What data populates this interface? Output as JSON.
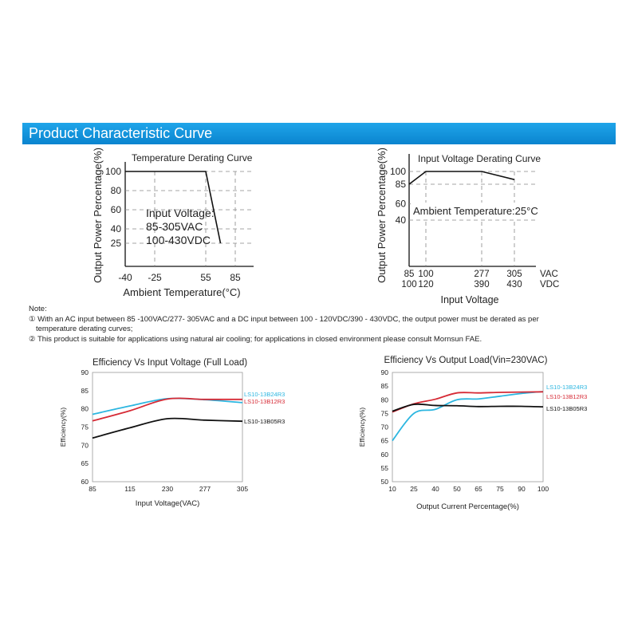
{
  "section_title": "Product Characteristic Curve",
  "notes": {
    "heading": "Note:",
    "items": [
      "① With an AC input between 85 -100VAC/277- 305VAC and a DC input between 100 - 120VDC/390 - 430VDC, the output power must be derated as per",
      "temperature derating curves;",
      "② This product is suitable for applications using natural air cooling; for applications in closed environment please consult Mornsun FAE."
    ]
  },
  "colors": {
    "banner": "#1097dc",
    "cyan": "#2cb6e0",
    "red": "#d62a35",
    "black": "#111111",
    "grid": "#888888"
  },
  "chart_data": [
    {
      "type": "line",
      "title": "Temperature Derating Curve",
      "xlabel": "Ambient Temperature(°C)",
      "ylabel": "Output Power Percentage(%)",
      "x_ticks": [
        "-40",
        "-25",
        "55",
        "85"
      ],
      "y_ticks": [
        "100",
        "80",
        "60",
        "40",
        "25"
      ],
      "series": [
        {
          "x": [
            -40,
            55,
            70
          ],
          "y": [
            100,
            100,
            25
          ]
        }
      ],
      "annotation": [
        "Input Voltage:",
        "85-305VAC",
        "100-430VDC"
      ],
      "grid": "dashed"
    },
    {
      "type": "line",
      "title": "Input Voltage Derating Curve",
      "xlabel": "Input Voltage",
      "ylabel": "Output Power Percentage(%)",
      "x_ticks_vac": [
        "85",
        "100",
        "277",
        "305"
      ],
      "x_ticks_vdc": [
        "100",
        "120",
        "390",
        "430"
      ],
      "x_units": [
        "VAC",
        "VDC"
      ],
      "y_ticks": [
        "100",
        "85",
        "60",
        "40"
      ],
      "series": [
        {
          "x_vac": [
            85,
            100,
            277,
            305
          ],
          "y": [
            85,
            100,
            100,
            90
          ]
        }
      ],
      "annotation": "Ambient Temperature:25°C",
      "grid": "dashed"
    },
    {
      "type": "line",
      "title": "Efficiency Vs Input Voltage (Full Load)",
      "xlabel": "Input Voltage(VAC)",
      "ylabel": "Efficiency(%)",
      "categories": [
        "85",
        "115",
        "230",
        "277",
        "305"
      ],
      "ylim": [
        60,
        90
      ],
      "y_ticks": [
        "90",
        "85",
        "80",
        "75",
        "70",
        "65",
        "60"
      ],
      "series": [
        {
          "name": "LS10-13B24R3",
          "color": "#2cb6e0",
          "values": [
            78.5,
            80.8,
            82.8,
            82.5,
            81.7
          ]
        },
        {
          "name": "LS10-13B12R3",
          "color": "#d62a35",
          "values": [
            76.7,
            79.5,
            82.7,
            82.6,
            82.6
          ]
        },
        {
          "name": "LS10-13B05R3",
          "color": "#111111",
          "values": [
            72.0,
            74.8,
            77.3,
            76.9,
            76.6
          ]
        }
      ],
      "grid": false
    },
    {
      "type": "line",
      "title": "Efficiency Vs Output Load(Vin=230VAC)",
      "xlabel": "Output Current Percentage(%)",
      "ylabel": "Efficiency(%)",
      "categories": [
        "10",
        "25",
        "40",
        "50",
        "65",
        "75",
        "90",
        "100"
      ],
      "ylim": [
        50,
        90
      ],
      "y_ticks": [
        "90",
        "85",
        "80",
        "75",
        "70",
        "65",
        "60",
        "55",
        "50"
      ],
      "series": [
        {
          "name": "LS10-13B24R3",
          "color": "#2cb6e0",
          "values": [
            65.0,
            75.0,
            76.5,
            80.0,
            80.3,
            81.3,
            82.3,
            83.0
          ]
        },
        {
          "name": "LS10-13B12R3",
          "color": "#d62a35",
          "values": [
            75.5,
            78.5,
            80.2,
            82.5,
            82.5,
            82.7,
            82.8,
            82.9
          ]
        },
        {
          "name": "LS10-13B05R3",
          "color": "#111111",
          "values": [
            75.8,
            78.3,
            77.9,
            77.8,
            77.5,
            77.6,
            77.6,
            77.4
          ]
        }
      ],
      "grid": false
    }
  ]
}
